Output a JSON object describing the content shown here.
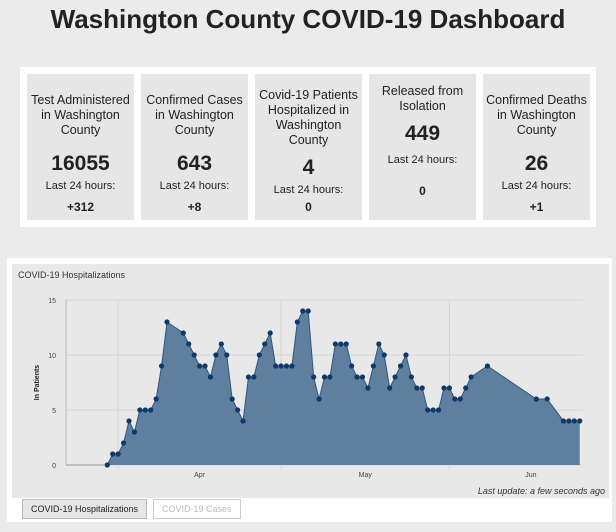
{
  "title": "Washington County COVID-19 Dashboard",
  "cards": [
    {
      "label": "Test Administered in Washington County",
      "value": "16055",
      "last24_label": "Last 24 hours:",
      "last24": "+312"
    },
    {
      "label": "Confirmed Cases in Washington County",
      "value": "643",
      "last24_label": "Last 24 hours:",
      "last24": "+8"
    },
    {
      "label": "Covid-19 Patients Hospitalized in Washington County",
      "value": "4",
      "last24_label": "Last 24 hours:",
      "last24": "0"
    },
    {
      "label": "Released from Isolation",
      "value": "449",
      "last24_label": "Last 24 hours:",
      "last24": "0"
    },
    {
      "label": "Confirmed Deaths in Washington County",
      "value": "26",
      "last24_label": "Last 24 hours:",
      "last24": "+1"
    }
  ],
  "chart": {
    "last_update": "Last update: a few seconds ago"
  },
  "tabs": [
    {
      "label": "COVID-19 Hospitalizations",
      "active": true
    },
    {
      "label": "COVID-19 Cases",
      "active": false
    }
  ],
  "colors": {
    "area": "#5f7f9f",
    "line": "#2f5680",
    "point": "#0d3a6b"
  },
  "chart_data": {
    "type": "area",
    "title": "COVID-19 Hospitalizations",
    "ylabel": "In Patients",
    "ylim": [
      0,
      15
    ],
    "yticks": [
      0,
      5,
      10,
      15
    ],
    "xticks": [
      "Apr",
      "May",
      "Jun"
    ],
    "grid": true,
    "x": [
      "Mar 30",
      "Mar 31",
      "Apr 1",
      "Apr 2",
      "Apr 3",
      "Apr 4",
      "Apr 5",
      "Apr 6",
      "Apr 7",
      "Apr 8",
      "Apr 9",
      "Apr 10",
      "Apr 13",
      "Apr 14",
      "Apr 15",
      "Apr 16",
      "Apr 17",
      "Apr 18",
      "Apr 19",
      "Apr 20",
      "Apr 21",
      "Apr 22",
      "Apr 23",
      "Apr 24",
      "Apr 25",
      "Apr 26",
      "Apr 27",
      "Apr 28",
      "Apr 29",
      "Apr 30",
      "May 1",
      "May 2",
      "May 3",
      "May 4",
      "May 5",
      "May 6",
      "May 7",
      "May 8",
      "May 9",
      "May 10",
      "May 11",
      "May 12",
      "May 13",
      "May 14",
      "May 15",
      "May 16",
      "May 17",
      "May 18",
      "May 19",
      "May 20",
      "May 21",
      "May 22",
      "May 23",
      "May 24",
      "May 25",
      "May 26",
      "May 27",
      "May 28",
      "May 29",
      "May 30",
      "May 31",
      "Jun 1",
      "Jun 2",
      "Jun 3",
      "Jun 4",
      "Jun 5",
      "Jun 8",
      "Jun 17",
      "Jun 19",
      "Jun 22",
      "Jun 23",
      "Jun 24",
      "Jun 25"
    ],
    "values": [
      0,
      1,
      1,
      2,
      4,
      3,
      5,
      5,
      5,
      6,
      9,
      13,
      12,
      11,
      10,
      9,
      9,
      8,
      10,
      11,
      10,
      6,
      5,
      4,
      8,
      8,
      10,
      11,
      12,
      9,
      9,
      9,
      9,
      13,
      14,
      14,
      8,
      6,
      8,
      8,
      11,
      11,
      11,
      9,
      8,
      8,
      7,
      9,
      11,
      10,
      7,
      8,
      9,
      10,
      8,
      7,
      7,
      5,
      5,
      5,
      7,
      7,
      6,
      6,
      7,
      8,
      9,
      6,
      6,
      4,
      4,
      4,
      4
    ]
  }
}
